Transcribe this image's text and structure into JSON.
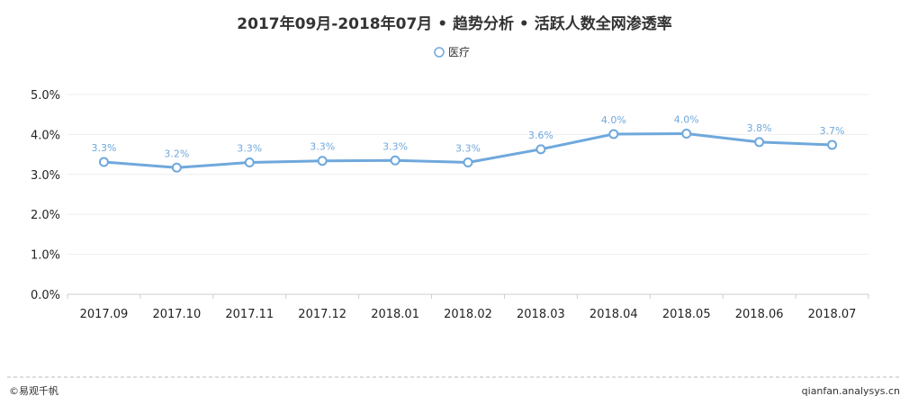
{
  "header": {
    "title": "2017年09月-2018年07月 • 趋势分析 • 活跃人数全网渗透率"
  },
  "legend": {
    "label": "医疗",
    "placement": "top-center"
  },
  "footer": {
    "left": "©易观千帆",
    "right": "qianfan.analysys.cn"
  },
  "colors": {
    "series": "#6fa8dc",
    "grid": "#eeeeee",
    "axis": "#cccccc"
  },
  "chart_data": {
    "type": "line",
    "title": "2017年09月-2018年07月 • 趋势分析 • 活跃人数全网渗透率",
    "xlabel": "",
    "ylabel": "",
    "categories": [
      "2017.09",
      "2017.10",
      "2017.11",
      "2017.12",
      "2018.01",
      "2018.02",
      "2018.03",
      "2018.04",
      "2018.05",
      "2018.06",
      "2018.07"
    ],
    "series": [
      {
        "name": "医疗",
        "values": [
          3.31,
          3.17,
          3.3,
          3.34,
          3.35,
          3.3,
          3.63,
          4.01,
          4.02,
          3.81,
          3.74
        ],
        "labels": [
          "3.3%",
          "3.2%",
          "3.3%",
          "3.3%",
          "3.3%",
          "3.3%",
          "3.6%",
          "4.0%",
          "4.0%",
          "3.8%",
          "3.7%"
        ]
      }
    ],
    "yticks": [
      "0.0%",
      "1.0%",
      "2.0%",
      "3.0%",
      "4.0%",
      "5.0%"
    ],
    "ylim": [
      0,
      5
    ],
    "grid": true
  }
}
